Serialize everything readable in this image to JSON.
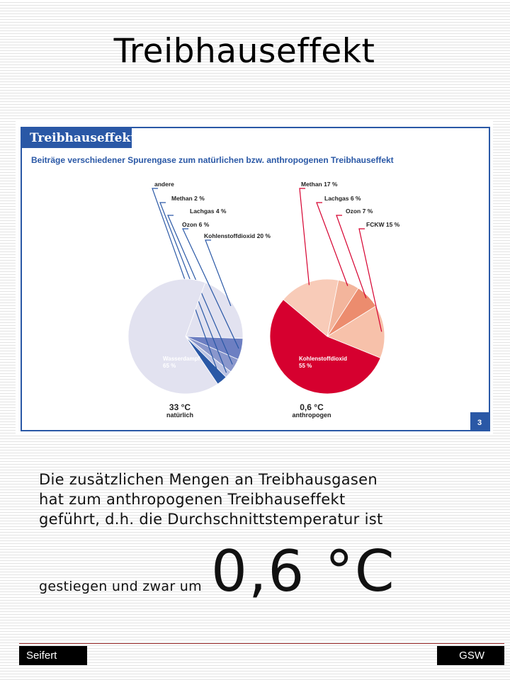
{
  "slide": {
    "title": "Treibhauseffekt",
    "body_lines": [
      "Die zusätzlichen Mengen an Treibhausgasen",
      "hat zum anthropogenen Treibhauseffekt",
      "geführt, d.h. die Durchschnittstemperatur ist"
    ],
    "body_last_small": "gestiegen und zwar um",
    "body_last_big": "0,6 °C",
    "footer_left": "Seifert",
    "footer_right": "GSW"
  },
  "colors": {
    "frame_blue": "#2a58a6",
    "natural": [
      "#e2e2f0",
      "#6d7fc2",
      "#8a97cc",
      "#bcc3e3",
      "#2a58a6"
    ],
    "anthro": [
      "#f8cbb8",
      "#f3b59c",
      "#ec8c6e",
      "#f7c1aa",
      "#d6002f"
    ]
  },
  "chart_data": [
    {
      "type": "pie",
      "figure_title": "Treibhauseffekt",
      "subtitle": "Beiträge verschiedener Spurengase zum natürlichen bzw. anthropogenen Treibhauseffekt",
      "badge": "3",
      "title": "33 °C",
      "caption": "natürlich",
      "slices": [
        {
          "label": "Kohlenstoffdioxid 20 %",
          "value": 20
        },
        {
          "label": "Ozon 6 %",
          "value": 6
        },
        {
          "label": "Lachgas 4 %",
          "value": 4
        },
        {
          "label": "Methan 2 %",
          "value": 2
        },
        {
          "label": "andere",
          "value": 3
        },
        {
          "label": "Wasserdampf",
          "value_label": "65 %",
          "value": 65
        }
      ]
    },
    {
      "type": "pie",
      "title": "0,6 °C",
      "caption": "anthropogen",
      "slices": [
        {
          "label": "Methan 17 %",
          "value": 17
        },
        {
          "label": "Lachgas 6 %",
          "value": 6
        },
        {
          "label": "Ozon 7 %",
          "value": 7
        },
        {
          "label": "FCKW 15 %",
          "value": 15
        },
        {
          "label": "Kohlenstoffdioxid",
          "value_label": "55 %",
          "value": 55
        }
      ]
    }
  ]
}
